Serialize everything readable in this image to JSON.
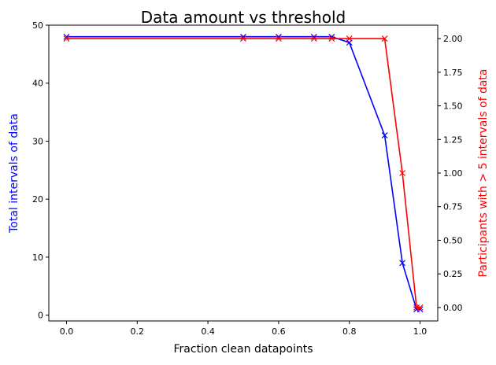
{
  "chart_data": {
    "type": "line",
    "title": "Data amount vs threshold",
    "xlabel": "Fraction clean datapoints",
    "ylabel_left": "Total intervals of data",
    "ylabel_right": "Participants with > 5 intervals of data",
    "xlim": [
      -0.05,
      1.05
    ],
    "ylim_left": [
      -1,
      50
    ],
    "ylim_right": [
      -0.1,
      2.1
    ],
    "x_ticks": [
      "0.0",
      "0.2",
      "0.4",
      "0.6",
      "0.8",
      "1.0"
    ],
    "y_left_ticks": [
      "0",
      "10",
      "20",
      "30",
      "40",
      "50"
    ],
    "y_right_ticks": [
      "0.00",
      "0.25",
      "0.50",
      "0.75",
      "1.00",
      "1.25",
      "1.50",
      "1.75",
      "2.00"
    ],
    "grid": false,
    "marker": "x",
    "series": [
      {
        "axis": "left",
        "color": "#0000ff",
        "x": [
          0.0,
          0.5,
          0.6,
          0.7,
          0.75,
          0.8,
          0.9,
          0.95,
          0.99,
          1.0
        ],
        "y": [
          48,
          48,
          48,
          48,
          48,
          47,
          31,
          9,
          1,
          1
        ]
      },
      {
        "axis": "right",
        "color": "#ff0000",
        "x": [
          0.0,
          0.5,
          0.6,
          0.7,
          0.75,
          0.8,
          0.9,
          0.95,
          0.99,
          1.0
        ],
        "y": [
          2,
          2,
          2,
          2,
          2,
          2,
          2,
          1,
          0,
          0
        ]
      }
    ]
  }
}
